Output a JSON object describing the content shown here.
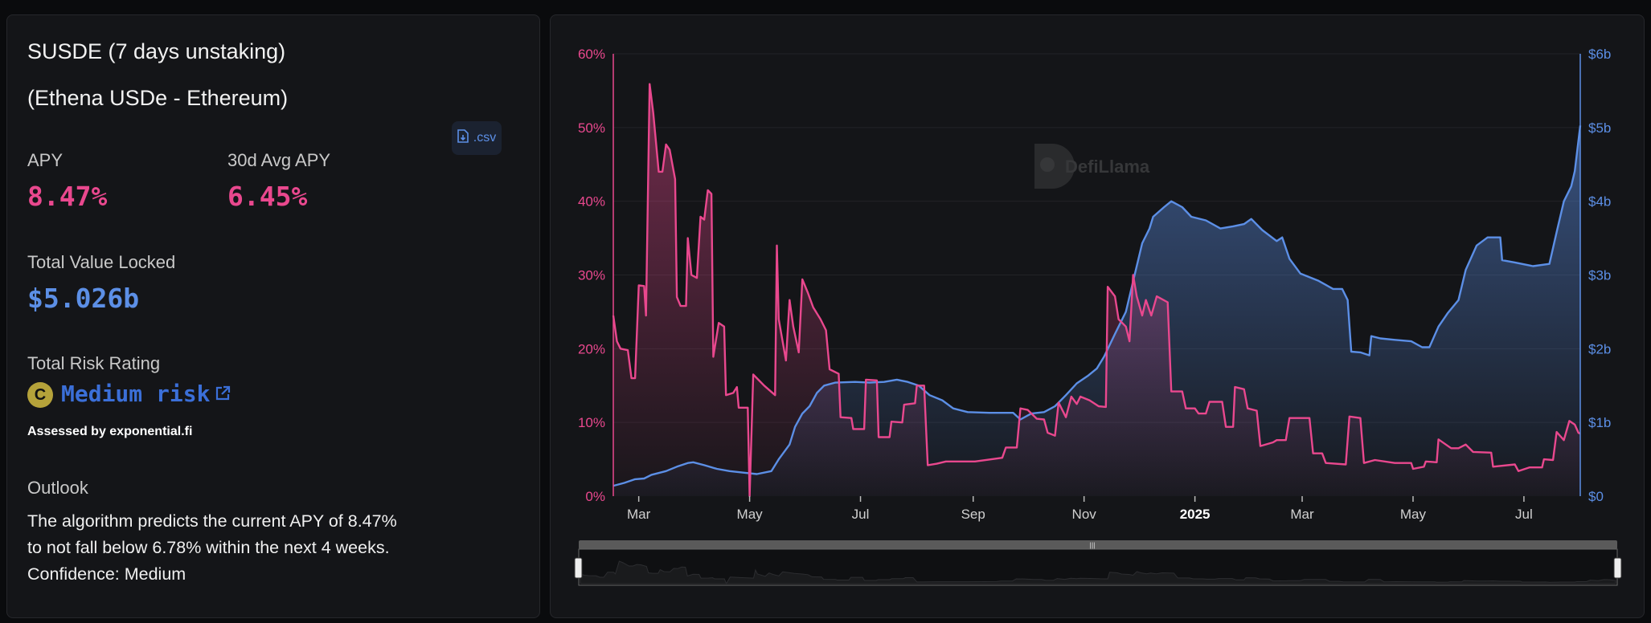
{
  "pool": {
    "title_line1": "SUSDE (7 days unstaking)",
    "title_line2": "(Ethena USDe - Ethereum)"
  },
  "stats": {
    "apy_label": "APY",
    "apy_value": "8.47%",
    "avg_apy_label": "30d Avg APY",
    "avg_apy_value": "6.45%",
    "csv_label": ".csv",
    "tvl_label": "Total Value Locked",
    "tvl_value": "$5.026b"
  },
  "risk": {
    "label": "Total Risk Rating",
    "grade": "C",
    "rating": "Medium risk",
    "assessed_by": "Assessed by exponential.fi"
  },
  "outlook": {
    "label": "Outlook",
    "line1": "The algorithm predicts the current APY of 8.47%",
    "line2": "to not fall below 6.78% within the next 4 weeks.",
    "line3": "Confidence: Medium"
  },
  "watermark": "DefiLlama",
  "colors": {
    "apy": "#e9488e",
    "tvl": "#5c8fe6",
    "grade": "#b5a23a"
  },
  "chart_data": {
    "type": "line",
    "x_unit": "days since start_date",
    "start_date": "2024-02-16",
    "xlim": [
      0,
      532
    ],
    "x_ticks": [
      {
        "day": 14,
        "label": "Mar"
      },
      {
        "day": 75,
        "label": "May"
      },
      {
        "day": 136,
        "label": "Jul"
      },
      {
        "day": 198,
        "label": "Sep"
      },
      {
        "day": 259,
        "label": "Nov"
      },
      {
        "day": 320,
        "label": "2025",
        "bold": true
      },
      {
        "day": 379,
        "label": "Mar"
      },
      {
        "day": 440,
        "label": "May"
      },
      {
        "day": 501,
        "label": "Jul"
      }
    ],
    "y_left": {
      "name": "APY",
      "ylim": [
        0,
        60
      ],
      "ticks": [
        "0%",
        "10%",
        "20%",
        "30%",
        "40%",
        "50%",
        "60%"
      ]
    },
    "y_right": {
      "name": "TVL",
      "ylim": [
        0,
        6
      ],
      "ticks": [
        "$0",
        "$1b",
        "$2b",
        "$3b",
        "$4b",
        "$5b",
        "$6b"
      ]
    },
    "grid": true,
    "series": [
      {
        "name": "APY",
        "axis": "left",
        "unit": "%",
        "points": [
          [
            0,
            24.5
          ],
          [
            2,
            21
          ],
          [
            4,
            20
          ],
          [
            8,
            19.8
          ],
          [
            10,
            16
          ],
          [
            12,
            16
          ],
          [
            14,
            28.6
          ],
          [
            17,
            28.5
          ],
          [
            18,
            24.5
          ],
          [
            20,
            55.9
          ],
          [
            22,
            52
          ],
          [
            25,
            44
          ],
          [
            27,
            44
          ],
          [
            29,
            47.7
          ],
          [
            31,
            47
          ],
          [
            34,
            43
          ],
          [
            35,
            27
          ],
          [
            37,
            25.8
          ],
          [
            40,
            25.8
          ],
          [
            41,
            35
          ],
          [
            43,
            30
          ],
          [
            46,
            29.6
          ],
          [
            48,
            37.9
          ],
          [
            50,
            37.5
          ],
          [
            52,
            41.5
          ],
          [
            54,
            41
          ],
          [
            55,
            18.9
          ],
          [
            58,
            23.5
          ],
          [
            61,
            23
          ],
          [
            62,
            13.7
          ],
          [
            66,
            14
          ],
          [
            68,
            14.8
          ],
          [
            69,
            12
          ],
          [
            74,
            12
          ],
          [
            75,
            0
          ],
          [
            77,
            16.5
          ],
          [
            83,
            15
          ],
          [
            89,
            13.7
          ],
          [
            90,
            34
          ],
          [
            91,
            24
          ],
          [
            95,
            18.4
          ],
          [
            97,
            26.6
          ],
          [
            99,
            23
          ],
          [
            102,
            19.5
          ],
          [
            104,
            29.4
          ],
          [
            107,
            27.6
          ],
          [
            110,
            25.6
          ],
          [
            114,
            24
          ],
          [
            117,
            22.5
          ],
          [
            119,
            17.2
          ],
          [
            124,
            16.6
          ],
          [
            125,
            10.7
          ],
          [
            131,
            10.6
          ],
          [
            132,
            9.1
          ],
          [
            138,
            9.1
          ],
          [
            139,
            15.8
          ],
          [
            145,
            15.7
          ],
          [
            146,
            8
          ],
          [
            152,
            8
          ],
          [
            153,
            10.1
          ],
          [
            159,
            10
          ],
          [
            160,
            12.4
          ],
          [
            166,
            12.6
          ],
          [
            167,
            15
          ],
          [
            171,
            15
          ],
          [
            173,
            4.2
          ],
          [
            178,
            4.4
          ],
          [
            183,
            4.7
          ],
          [
            199,
            4.7
          ],
          [
            208,
            5
          ],
          [
            214,
            5.2
          ],
          [
            216,
            6.6
          ],
          [
            222,
            6.6
          ],
          [
            224,
            11.9
          ],
          [
            228,
            11.7
          ],
          [
            233,
            10.5
          ],
          [
            237,
            10.4
          ],
          [
            239,
            8.6
          ],
          [
            243,
            8.2
          ],
          [
            245,
            12.7
          ],
          [
            249,
            10.7
          ],
          [
            252,
            13.5
          ],
          [
            255,
            12.5
          ],
          [
            257,
            13.5
          ],
          [
            262,
            13
          ],
          [
            267,
            12.2
          ],
          [
            271,
            12.1
          ],
          [
            272,
            28.4
          ],
          [
            276,
            27.1
          ],
          [
            278,
            24
          ],
          [
            282,
            23
          ],
          [
            284,
            21
          ],
          [
            286,
            30
          ],
          [
            288,
            27.1
          ],
          [
            291,
            24.5
          ],
          [
            293,
            26.6
          ],
          [
            296,
            24.5
          ],
          [
            299,
            27.1
          ],
          [
            305,
            26.3
          ],
          [
            307,
            14.2
          ],
          [
            313,
            14.2
          ],
          [
            315,
            11.9
          ],
          [
            320,
            11.9
          ],
          [
            322,
            11.2
          ],
          [
            326,
            11.2
          ],
          [
            328,
            12.8
          ],
          [
            335,
            12.8
          ],
          [
            337,
            9.4
          ],
          [
            341,
            9.4
          ],
          [
            342,
            14.8
          ],
          [
            347,
            14.5
          ],
          [
            349,
            11.9
          ],
          [
            354,
            11.6
          ],
          [
            356,
            6.8
          ],
          [
            363,
            7.3
          ],
          [
            365,
            7.6
          ],
          [
            370,
            7.6
          ],
          [
            372,
            10.6
          ],
          [
            383,
            10.6
          ],
          [
            385,
            5.8
          ],
          [
            390,
            5.8
          ],
          [
            392,
            4.5
          ],
          [
            403,
            4.3
          ],
          [
            405,
            10.8
          ],
          [
            411,
            10.6
          ],
          [
            413,
            4.5
          ],
          [
            419,
            4.9
          ],
          [
            430,
            4.5
          ],
          [
            439,
            4.5
          ],
          [
            440,
            3.7
          ],
          [
            446,
            4
          ],
          [
            447,
            4.7
          ],
          [
            453,
            4.6
          ],
          [
            454,
            7.7
          ],
          [
            461,
            6.5
          ],
          [
            465,
            6.5
          ],
          [
            469,
            7
          ],
          [
            473,
            6
          ],
          [
            483,
            5.9
          ],
          [
            484,
            4
          ],
          [
            496,
            4.3
          ],
          [
            498,
            3.4
          ],
          [
            504,
            3.9
          ],
          [
            511,
            3.9
          ],
          [
            512,
            5
          ],
          [
            517,
            4.9
          ],
          [
            519,
            8.7
          ],
          [
            523,
            7.6
          ],
          [
            526,
            10.2
          ],
          [
            529,
            9.7
          ],
          [
            531,
            8.6
          ],
          [
            532,
            8.47
          ]
        ]
      },
      {
        "name": "TVL",
        "axis": "right",
        "unit": "$b",
        "points": [
          [
            0,
            0.14
          ],
          [
            6,
            0.18
          ],
          [
            12,
            0.23
          ],
          [
            17,
            0.24
          ],
          [
            21,
            0.29
          ],
          [
            29,
            0.34
          ],
          [
            35,
            0.4
          ],
          [
            41,
            0.45
          ],
          [
            44,
            0.46
          ],
          [
            50,
            0.42
          ],
          [
            57,
            0.37
          ],
          [
            64,
            0.34
          ],
          [
            71,
            0.32
          ],
          [
            79,
            0.3
          ],
          [
            87,
            0.34
          ],
          [
            91,
            0.5
          ],
          [
            97,
            0.7
          ],
          [
            100,
            0.94
          ],
          [
            104,
            1.12
          ],
          [
            108,
            1.22
          ],
          [
            112,
            1.4
          ],
          [
            116,
            1.5
          ],
          [
            122,
            1.54
          ],
          [
            133,
            1.55
          ],
          [
            141,
            1.54
          ],
          [
            149,
            1.55
          ],
          [
            156,
            1.58
          ],
          [
            162,
            1.55
          ],
          [
            168,
            1.5
          ],
          [
            174,
            1.37
          ],
          [
            181,
            1.3
          ],
          [
            187,
            1.19
          ],
          [
            195,
            1.14
          ],
          [
            207,
            1.13
          ],
          [
            220,
            1.13
          ],
          [
            224,
            1.04
          ],
          [
            230,
            1.12
          ],
          [
            237,
            1.14
          ],
          [
            243,
            1.22
          ],
          [
            249,
            1.37
          ],
          [
            255,
            1.53
          ],
          [
            261,
            1.63
          ],
          [
            266,
            1.73
          ],
          [
            270,
            1.89
          ],
          [
            276,
            2.2
          ],
          [
            282,
            2.5
          ],
          [
            287,
            3.02
          ],
          [
            291,
            3.43
          ],
          [
            295,
            3.63
          ],
          [
            297,
            3.79
          ],
          [
            303,
            3.92
          ],
          [
            307,
            4.0
          ],
          [
            313,
            3.92
          ],
          [
            318,
            3.79
          ],
          [
            326,
            3.74
          ],
          [
            334,
            3.63
          ],
          [
            341,
            3.66
          ],
          [
            347,
            3.69
          ],
          [
            351,
            3.76
          ],
          [
            357,
            3.61
          ],
          [
            365,
            3.46
          ],
          [
            368,
            3.51
          ],
          [
            372,
            3.22
          ],
          [
            378,
            3.02
          ],
          [
            388,
            2.92
          ],
          [
            396,
            2.81
          ],
          [
            401,
            2.81
          ],
          [
            404,
            2.66
          ],
          [
            406,
            1.96
          ],
          [
            411,
            1.95
          ],
          [
            416,
            1.91
          ],
          [
            417,
            2.17
          ],
          [
            422,
            2.14
          ],
          [
            430,
            2.12
          ],
          [
            439,
            2.1
          ],
          [
            445,
            2.02
          ],
          [
            449,
            2.02
          ],
          [
            454,
            2.3
          ],
          [
            459,
            2.48
          ],
          [
            465,
            2.66
          ],
          [
            469,
            3.07
          ],
          [
            475,
            3.4
          ],
          [
            481,
            3.51
          ],
          [
            488,
            3.51
          ],
          [
            489,
            3.2
          ],
          [
            496,
            3.17
          ],
          [
            506,
            3.12
          ],
          [
            515,
            3.15
          ],
          [
            519,
            3.58
          ],
          [
            523,
            4.0
          ],
          [
            527,
            4.2
          ],
          [
            529,
            4.41
          ],
          [
            531,
            4.82
          ],
          [
            532,
            5.026
          ]
        ]
      }
    ]
  }
}
